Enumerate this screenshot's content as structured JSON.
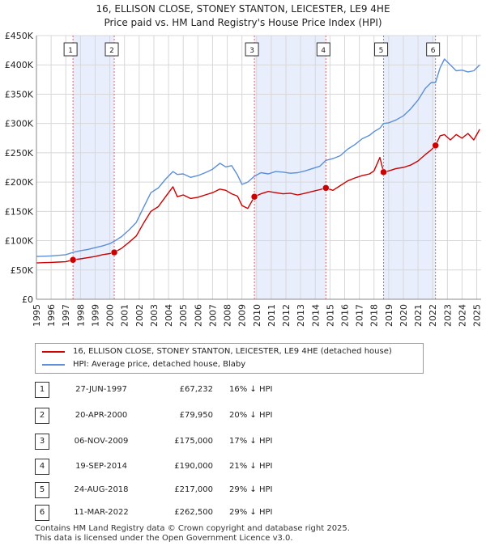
{
  "header": {
    "title": "16, ELLISON CLOSE, STONEY STANTON, LEICESTER, LE9 4HE",
    "subtitle": "Price paid vs. HM Land Registry's House Price Index (HPI)"
  },
  "legend": {
    "property_label": "16, ELLISON CLOSE, STONEY STANTON, LEICESTER, LE9 4HE (detached house)",
    "hpi_label": "HPI: Average price, detached house, Blaby"
  },
  "colors": {
    "property": "#cc0000",
    "hpi": "#5b8fd6",
    "band": "#e8eefb",
    "grid": "#d8d8d8"
  },
  "sales": [
    {
      "num": "1",
      "date": "27-JUN-1997",
      "price": "£67,232",
      "diff": "16% ↓ HPI"
    },
    {
      "num": "2",
      "date": "20-APR-2000",
      "price": "£79,950",
      "diff": "20% ↓ HPI"
    },
    {
      "num": "3",
      "date": "06-NOV-2009",
      "price": "£175,000",
      "diff": "17% ↓ HPI"
    },
    {
      "num": "4",
      "date": "19-SEP-2014",
      "price": "£190,000",
      "diff": "21% ↓ HPI"
    },
    {
      "num": "5",
      "date": "24-AUG-2018",
      "price": "£217,000",
      "diff": "29% ↓ HPI"
    },
    {
      "num": "6",
      "date": "11-MAR-2022",
      "price": "£262,500",
      "diff": "29% ↓ HPI"
    }
  ],
  "footer": {
    "line1": "Contains HM Land Registry data © Crown copyright and database right 2025.",
    "line2": "This data is licensed under the Open Government Licence v3.0."
  },
  "chart_data": {
    "type": "line",
    "title": "16, ELLISON CLOSE, STONEY STANTON, LEICESTER, LE9 4HE",
    "subtitle": "Price paid vs. HM Land Registry's House Price Index (HPI)",
    "xlabel": "",
    "ylabel": "",
    "xlim": [
      1995.0,
      2025.3
    ],
    "ylim": [
      0,
      450000
    ],
    "x_ticks": [
      "1995",
      "1996",
      "1997",
      "1998",
      "1999",
      "2000",
      "2001",
      "2002",
      "2003",
      "2004",
      "2005",
      "2006",
      "2007",
      "2008",
      "2009",
      "2010",
      "2011",
      "2012",
      "2013",
      "2014",
      "2015",
      "2016",
      "2017",
      "2018",
      "2019",
      "2020",
      "2021",
      "2022",
      "2023",
      "2024",
      "2025"
    ],
    "y_ticks": [
      {
        "value": 0,
        "label": "£0"
      },
      {
        "value": 50000,
        "label": "£50K"
      },
      {
        "value": 100000,
        "label": "£100K"
      },
      {
        "value": 150000,
        "label": "£150K"
      },
      {
        "value": 200000,
        "label": "£200K"
      },
      {
        "value": 250000,
        "label": "£250K"
      },
      {
        "value": 300000,
        "label": "£300K"
      },
      {
        "value": 350000,
        "label": "£350K"
      },
      {
        "value": 400000,
        "label": "£400K"
      },
      {
        "value": 450000,
        "label": "£450K"
      }
    ],
    "grid": true,
    "legend_position": "below",
    "shaded_bands": [
      [
        1997.49,
        2000.3
      ],
      [
        2009.85,
        2014.72
      ],
      [
        2018.65,
        2022.19
      ]
    ],
    "series": [
      {
        "name": "16, ELLISON CLOSE, STONEY STANTON, LEICESTER, LE9 4HE (detached house)",
        "x": [
          1995.0,
          1995.5,
          1996.0,
          1996.5,
          1997.0,
          1997.49,
          1998.0,
          1998.5,
          1999.0,
          1999.5,
          2000.0,
          2000.3,
          2000.8,
          2001.3,
          2001.8,
          2002.3,
          2002.8,
          2003.3,
          2003.8,
          2004.3,
          2004.6,
          2005.0,
          2005.5,
          2006.0,
          2006.5,
          2007.0,
          2007.5,
          2007.9,
          2008.3,
          2008.7,
          2009.0,
          2009.4,
          2009.85,
          2010.3,
          2010.8,
          2011.3,
          2011.8,
          2012.3,
          2012.8,
          2013.3,
          2013.8,
          2014.3,
          2014.72,
          2015.2,
          2015.7,
          2016.2,
          2016.7,
          2017.2,
          2017.7,
          2018.0,
          2018.4,
          2018.65,
          2019.0,
          2019.5,
          2020.0,
          2020.5,
          2021.0,
          2021.5,
          2021.9,
          2022.19,
          2022.5,
          2022.8,
          2023.2,
          2023.6,
          2024.0,
          2024.4,
          2024.8,
          2025.2
        ],
        "y": [
          62000,
          62500,
          63000,
          63500,
          64000,
          67232,
          69000,
          71000,
          73000,
          76000,
          78000,
          79950,
          87000,
          97000,
          108000,
          130000,
          150000,
          158000,
          175000,
          192000,
          175000,
          178000,
          172000,
          174000,
          178000,
          182000,
          188000,
          186000,
          180000,
          176000,
          160000,
          155000,
          175000,
          180000,
          184000,
          182000,
          180000,
          181000,
          178000,
          181000,
          184000,
          187000,
          190000,
          186000,
          194000,
          202000,
          207000,
          211000,
          214000,
          219000,
          242000,
          217000,
          219000,
          223000,
          225000,
          229000,
          236000,
          247000,
          255000,
          262500,
          279000,
          281000,
          272000,
          281000,
          275000,
          283000,
          272000,
          290000
        ]
      },
      {
        "name": "HPI: Average price, detached house, Blaby",
        "x": [
          1995.0,
          1995.5,
          1996.0,
          1996.5,
          1997.0,
          1997.49,
          1998.0,
          1998.5,
          1999.0,
          1999.5,
          2000.0,
          2000.3,
          2000.8,
          2001.3,
          2001.8,
          2002.3,
          2002.8,
          2003.3,
          2003.8,
          2004.3,
          2004.6,
          2005.0,
          2005.5,
          2006.0,
          2006.5,
          2007.0,
          2007.5,
          2007.9,
          2008.3,
          2008.7,
          2009.0,
          2009.4,
          2009.85,
          2010.3,
          2010.8,
          2011.3,
          2011.8,
          2012.3,
          2012.8,
          2013.3,
          2013.8,
          2014.3,
          2014.72,
          2015.2,
          2015.7,
          2016.2,
          2016.7,
          2017.2,
          2017.7,
          2018.0,
          2018.4,
          2018.65,
          2019.0,
          2019.5,
          2020.0,
          2020.5,
          2021.0,
          2021.5,
          2021.9,
          2022.19,
          2022.5,
          2022.8,
          2023.2,
          2023.6,
          2024.0,
          2024.4,
          2024.8,
          2025.2
        ],
        "y": [
          73000,
          73500,
          74000,
          75000,
          76000,
          80000,
          83000,
          85000,
          88000,
          91000,
          95000,
          99000,
          107000,
          118000,
          131000,
          157000,
          182000,
          190000,
          205000,
          218000,
          213000,
          214000,
          208000,
          211000,
          216000,
          222000,
          232000,
          226000,
          228000,
          212000,
          196000,
          200000,
          210000,
          216000,
          214000,
          218000,
          217000,
          215000,
          216000,
          219000,
          223000,
          227000,
          237000,
          240000,
          245000,
          256000,
          264000,
          274000,
          280000,
          286000,
          292000,
          300000,
          301000,
          306000,
          313000,
          325000,
          340000,
          360000,
          370000,
          370000,
          395000,
          410000,
          400000,
          390000,
          391000,
          388000,
          390000,
          400000
        ]
      }
    ],
    "sale_markers": [
      {
        "label": "1",
        "x": 1997.49,
        "y": 67232
      },
      {
        "label": "2",
        "x": 2000.3,
        "y": 79950
      },
      {
        "label": "3",
        "x": 2009.85,
        "y": 175000
      },
      {
        "label": "4",
        "x": 2014.72,
        "y": 190000
      },
      {
        "label": "5",
        "x": 2018.65,
        "y": 217000
      },
      {
        "label": "6",
        "x": 2022.19,
        "y": 262500
      }
    ]
  }
}
